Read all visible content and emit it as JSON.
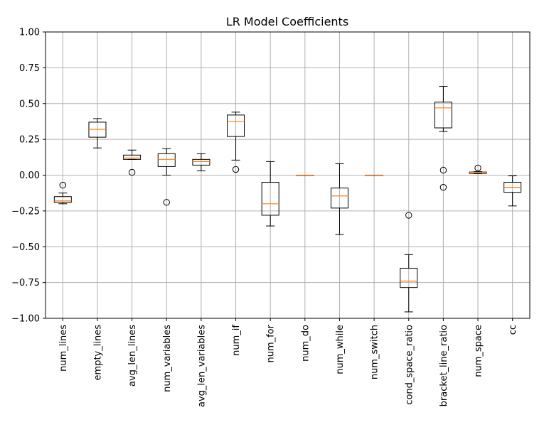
{
  "chart_data": {
    "type": "boxplot",
    "title": "LR Model Coefficients",
    "xlabel": "",
    "ylabel": "",
    "ylim": [
      -1.0,
      1.0
    ],
    "yticks": [
      -1.0,
      -0.75,
      -0.5,
      -0.25,
      0.0,
      0.25,
      0.5,
      0.75,
      1.0
    ],
    "ytick_labels": [
      "−1.00",
      "−0.75",
      "−0.50",
      "−0.25",
      "0.00",
      "0.25",
      "0.50",
      "0.75",
      "1.00"
    ],
    "grid": true,
    "colors": {
      "box": "#000000",
      "median": "#ff7f0e",
      "grid": "#b0b0b0"
    },
    "categories": [
      "num_lines",
      "empty_lines",
      "avg_len_lines",
      "num_variables",
      "avg_len_variables",
      "num_if",
      "num_for",
      "num_do",
      "num_while",
      "num_switch",
      "cond_space_ratio",
      "bracket_line_ratio",
      "num_space",
      "cc"
    ],
    "boxes": [
      {
        "label": "num_lines",
        "whisker_low": -0.2,
        "q1": -0.19,
        "median": -0.18,
        "q3": -0.15,
        "whisker_high": -0.125,
        "fliers": [
          -0.07
        ]
      },
      {
        "label": "empty_lines",
        "whisker_low": 0.19,
        "q1": 0.265,
        "median": 0.32,
        "q3": 0.37,
        "whisker_high": 0.395,
        "fliers": []
      },
      {
        "label": "avg_len_lines",
        "whisker_low": 0.11,
        "q1": 0.11,
        "median": 0.12,
        "q3": 0.14,
        "whisker_high": 0.175,
        "fliers": [
          0.02
        ]
      },
      {
        "label": "num_variables",
        "whisker_low": 0.0,
        "q1": 0.06,
        "median": 0.11,
        "q3": 0.15,
        "whisker_high": 0.185,
        "fliers": [
          -0.19
        ]
      },
      {
        "label": "avg_len_variables",
        "whisker_low": 0.03,
        "q1": 0.07,
        "median": 0.095,
        "q3": 0.11,
        "whisker_high": 0.15,
        "fliers": []
      },
      {
        "label": "num_if",
        "whisker_low": 0.105,
        "q1": 0.27,
        "median": 0.375,
        "q3": 0.42,
        "whisker_high": 0.44,
        "fliers": [
          0.04
        ]
      },
      {
        "label": "num_for",
        "whisker_low": -0.355,
        "q1": -0.28,
        "median": -0.2,
        "q3": -0.05,
        "whisker_high": 0.095,
        "fliers": []
      },
      {
        "label": "num_do",
        "whisker_low": 0.0,
        "q1": 0.0,
        "median": 0.0,
        "q3": 0.0,
        "whisker_high": 0.0,
        "fliers": []
      },
      {
        "label": "num_while",
        "whisker_low": -0.415,
        "q1": -0.23,
        "median": -0.145,
        "q3": -0.09,
        "whisker_high": 0.08,
        "fliers": []
      },
      {
        "label": "num_switch",
        "whisker_low": 0.0,
        "q1": 0.0,
        "median": 0.0,
        "q3": 0.0,
        "whisker_high": 0.0,
        "fliers": []
      },
      {
        "label": "cond_space_ratio",
        "whisker_low": -0.955,
        "q1": -0.785,
        "median": -0.74,
        "q3": -0.65,
        "whisker_high": -0.555,
        "fliers": [
          -0.28
        ]
      },
      {
        "label": "bracket_line_ratio",
        "whisker_low": 0.305,
        "q1": 0.33,
        "median": 0.47,
        "q3": 0.51,
        "whisker_high": 0.62,
        "fliers": [
          0.035,
          -0.085
        ]
      },
      {
        "label": "num_space",
        "whisker_low": 0.01,
        "q1": 0.012,
        "median": 0.02,
        "q3": 0.022,
        "whisker_high": 0.025,
        "fliers": [
          0.05
        ]
      },
      {
        "label": "cc",
        "whisker_low": -0.215,
        "q1": -0.12,
        "median": -0.085,
        "q3": -0.05,
        "whisker_high": -0.005,
        "fliers": []
      }
    ]
  }
}
